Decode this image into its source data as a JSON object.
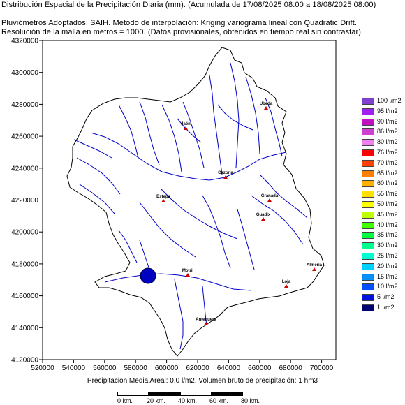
{
  "header": {
    "line1": "Distribución Espacial de la Precipitación Diaria (mm). (Acumulada de 17/08/2025 08:00 a 18/08/2025 08:00)",
    "line2": "Pluviómetros Adoptados: SAIH.   Método de interpolación: Kriging variograma lineal con Quadratic Drift.",
    "line3": "Resolución de la malla en metros = 1000. (Datos provisionales, obtenidos en tiempo real sin contrastar)"
  },
  "axes": {
    "y_ticks": [
      "4320000",
      "4300000",
      "4280000",
      "4260000",
      "4240000",
      "4220000",
      "4200000",
      "4180000",
      "4160000",
      "4140000",
      "4120000"
    ],
    "x_ticks": [
      "520000",
      "540000",
      "560000",
      "580000",
      "600000",
      "620000",
      "640000",
      "660000",
      "680000",
      "700000"
    ]
  },
  "cities": [
    {
      "name": "Jaén"
    },
    {
      "name": "Úbeda"
    },
    {
      "name": "Cazorla"
    },
    {
      "name": "Estepa"
    },
    {
      "name": "Granada"
    },
    {
      "name": "Guadix"
    },
    {
      "name": "Motril"
    },
    {
      "name": "Loja"
    },
    {
      "name": "Antequera"
    },
    {
      "name": "Almería"
    }
  ],
  "legend": {
    "items": [
      {
        "label": "100 l/m2",
        "color": "#7f40d0"
      },
      {
        "label": "95 l/m2",
        "color": "#a020f0"
      },
      {
        "label": "90 l/m2",
        "color": "#c010c0"
      },
      {
        "label": "86 l/m2",
        "color": "#d040d0"
      },
      {
        "label": "80 l/m2",
        "color": "#f080f0"
      },
      {
        "label": "76 l/m2",
        "color": "#ff0000"
      },
      {
        "label": "70 l/m2",
        "color": "#ff4000"
      },
      {
        "label": "65 l/m2",
        "color": "#ff8000"
      },
      {
        "label": "60 l/m2",
        "color": "#ffb000"
      },
      {
        "label": "55 l/m2",
        "color": "#ffe000"
      },
      {
        "label": "50 l/m2",
        "color": "#ffff00"
      },
      {
        "label": "45 l/m2",
        "color": "#c0ff00"
      },
      {
        "label": "40 l/m2",
        "color": "#40ff00"
      },
      {
        "label": "35 l/m2",
        "color": "#00ff40"
      },
      {
        "label": "30 l/m2",
        "color": "#00ff90"
      },
      {
        "label": "25 l/m2",
        "color": "#00ffd0"
      },
      {
        "label": "20 l/m2",
        "color": "#00d0ff"
      },
      {
        "label": "15 l/m2",
        "color": "#0090ff"
      },
      {
        "label": "10 l/m2",
        "color": "#0050ff"
      },
      {
        "label": "5 l/m2",
        "color": "#0010e0"
      },
      {
        "label": "1 l/m2",
        "color": "#000070"
      }
    ]
  },
  "footer": {
    "text": "Precipitacion Media Areal: 0,0 l/m2. Volumen bruto de precipitación: 1 hm3"
  },
  "scale_bar": {
    "labels": [
      "0 km.",
      "20 km.",
      "40 km.",
      "60 km.",
      "80 km."
    ]
  },
  "colors": {
    "rivers": "#0000c8",
    "basin_outline": "#000000",
    "city_marker": "#d00000",
    "rain_blob": "#0000c0"
  }
}
